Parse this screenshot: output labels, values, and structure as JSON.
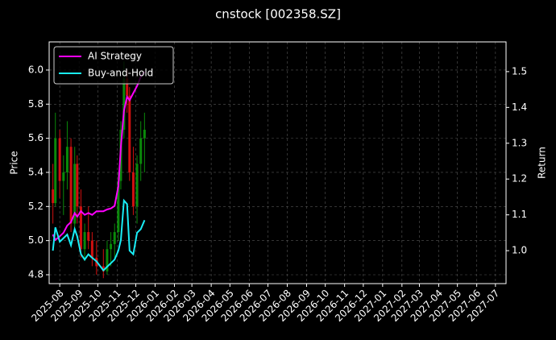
{
  "chart_data": {
    "type": "candlestick",
    "title": "cnstock [002358.SZ]",
    "ylabel": "Price",
    "y2label": "Return",
    "x": [
      "2025-07-21",
      "2025-07-25",
      "2025-08-01",
      "2025-08-07",
      "2025-08-13",
      "2025-08-19",
      "2025-08-25",
      "2025-08-29",
      "2025-09-04",
      "2025-09-10",
      "2025-09-16",
      "2025-09-22",
      "2025-09-29",
      "2025-10-10",
      "2025-10-16",
      "2025-10-22",
      "2025-10-28",
      "2025-11-03",
      "2025-11-07",
      "2025-11-12",
      "2025-11-17",
      "2025-11-21",
      "2025-11-27",
      "2025-12-03",
      "2025-12-09",
      "2025-12-15"
    ],
    "open": [
      5.3,
      5.22,
      5.6,
      5.35,
      5.4,
      5.55,
      5.1,
      5.45,
      5.2,
      4.95,
      5.05,
      5.0,
      4.9,
      4.85,
      4.82,
      4.95,
      4.98,
      5.05,
      5.35,
      5.65,
      5.95,
      5.85,
      5.4,
      5.2,
      5.45,
      5.6
    ],
    "high": [
      5.45,
      5.75,
      5.65,
      5.5,
      5.7,
      5.6,
      5.55,
      5.5,
      5.3,
      5.1,
      5.2,
      5.05,
      5.0,
      4.95,
      5.0,
      5.05,
      5.1,
      5.4,
      5.7,
      6.05,
      6.0,
      5.9,
      5.55,
      5.5,
      5.7,
      5.75
    ],
    "low": [
      5.1,
      5.2,
      5.25,
      5.15,
      5.3,
      5.05,
      5.05,
      5.1,
      4.9,
      4.88,
      4.95,
      4.85,
      4.8,
      4.78,
      4.8,
      4.85,
      4.9,
      5.0,
      5.3,
      5.6,
      5.75,
      5.35,
      5.15,
      5.1,
      5.35,
      5.4
    ],
    "close": [
      5.22,
      5.6,
      5.35,
      5.4,
      5.55,
      5.1,
      5.45,
      5.2,
      4.95,
      5.05,
      5.0,
      4.9,
      4.85,
      4.82,
      4.95,
      4.98,
      5.05,
      5.35,
      5.65,
      5.95,
      5.85,
      5.4,
      5.2,
      5.45,
      5.6,
      5.65
    ],
    "up_color": "#0a8a0a",
    "down_color": "#d01010",
    "series": [
      {
        "name": "AI Strategy",
        "color": "#ff00ff",
        "axis": "y2",
        "values": [
          1.045,
          1.03,
          1.04,
          1.05,
          1.07,
          1.08,
          1.105,
          1.095,
          1.11,
          1.1,
          1.105,
          1.1,
          1.11,
          1.11,
          1.115,
          1.118,
          1.125,
          1.18,
          1.29,
          1.39,
          1.43,
          1.42,
          1.44,
          1.46,
          1.485,
          1.5
        ]
      },
      {
        "name": "Buy-and-Hold",
        "color": "#19ecf5",
        "axis": "y2",
        "values": [
          1.0,
          1.065,
          1.025,
          1.035,
          1.045,
          1.015,
          1.06,
          1.04,
          0.99,
          0.975,
          0.99,
          0.98,
          0.97,
          0.945,
          0.955,
          0.965,
          0.975,
          1.0,
          1.03,
          1.14,
          1.13,
          1.0,
          0.99,
          1.05,
          1.06,
          1.085
        ]
      }
    ],
    "xlim": [
      "2025-07-15",
      "2027-07-18"
    ],
    "xticks": [
      "2025-08",
      "2025-09",
      "2025-10",
      "2025-11",
      "2025-12",
      "2026-01",
      "2026-02",
      "2026-03",
      "2026-04",
      "2026-05",
      "2026-06",
      "2026-07",
      "2026-08",
      "2026-09",
      "2026-10",
      "2026-11",
      "2026-12",
      "2027-01",
      "2027-02",
      "2027-03",
      "2027-04",
      "2027-05",
      "2027-06",
      "2027-07"
    ],
    "ylim": [
      4.748,
      6.165
    ],
    "yticks": [
      4.8,
      {
        "value": 5,
        "label": "5.0"
      },
      5.2,
      5.4,
      5.6,
      5.8,
      {
        "value": 6,
        "label": "6.0"
      }
    ],
    "y2lim": [
      0.908,
      1.583
    ],
    "y2ticks": [
      {
        "value": 1,
        "label": "1.0"
      },
      1.1,
      1.2,
      1.3,
      1.4,
      1.5
    ],
    "grid": true,
    "legend": "upper left"
  }
}
